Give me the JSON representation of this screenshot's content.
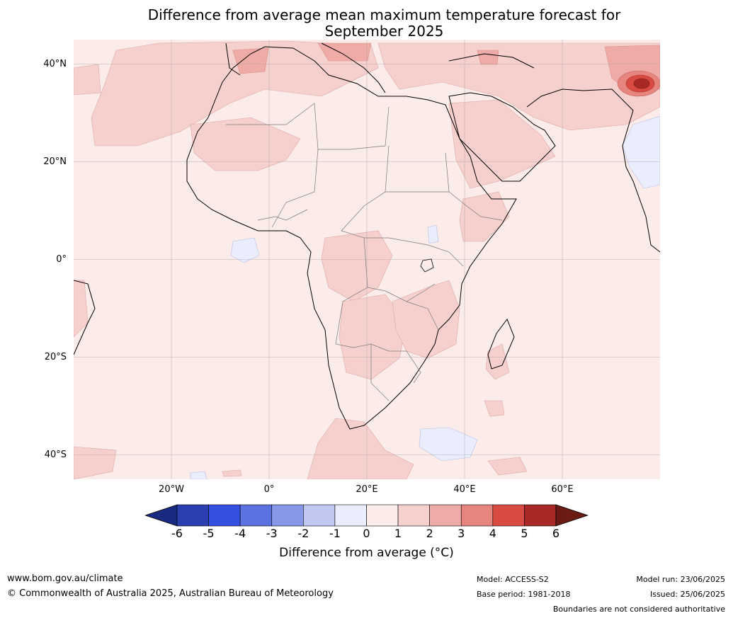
{
  "title_line1": "Difference from average mean maximum temperature forecast for",
  "title_line2": "September 2025",
  "lat_labels": [
    {
      "text": "40°N",
      "lat": 40
    },
    {
      "text": "20°N",
      "lat": 20
    },
    {
      "text": "0°",
      "lat": 0
    },
    {
      "text": "20°S",
      "lat": -20
    },
    {
      "text": "40°S",
      "lat": -40
    }
  ],
  "lon_labels": [
    {
      "text": "20°W",
      "lon": -20
    },
    {
      "text": "0°",
      "lon": 0
    },
    {
      "text": "20°E",
      "lon": 20
    },
    {
      "text": "40°E",
      "lon": 40
    },
    {
      "text": "60°E",
      "lon": 60
    }
  ],
  "map_extent": {
    "lon_min": -40,
    "lon_max": 80,
    "lat_min": -45,
    "lat_max": 45
  },
  "colorbar": {
    "ticks": [
      "-6",
      "-5",
      "-4",
      "-3",
      "-2",
      "-1",
      "0",
      "1",
      "2",
      "3",
      "4",
      "5",
      "6"
    ],
    "colors": [
      "#1a2a80",
      "#2a3fb0",
      "#3350e0",
      "#5a73e0",
      "#8898e8",
      "#c0c8f2",
      "#eaedfb",
      "#fbebe9",
      "#f6d0cd",
      "#eeaba7",
      "#e6847e",
      "#d94a42",
      "#a92a24",
      "#6b1a14"
    ],
    "label": "Difference from average (°C)"
  },
  "footer": {
    "website": "www.bom.gov.au/climate",
    "copyright": "© Commonwealth of Australia 2025, Australian Bureau of Meteorology",
    "model": "Model: ACCESS-S2",
    "base_period": "Base period: 1981-2018",
    "model_run": "Model run: 23/06/2025",
    "issued": "Issued: 25/06/2025",
    "disclaimer": "Boundaries are not considered authoritative"
  }
}
